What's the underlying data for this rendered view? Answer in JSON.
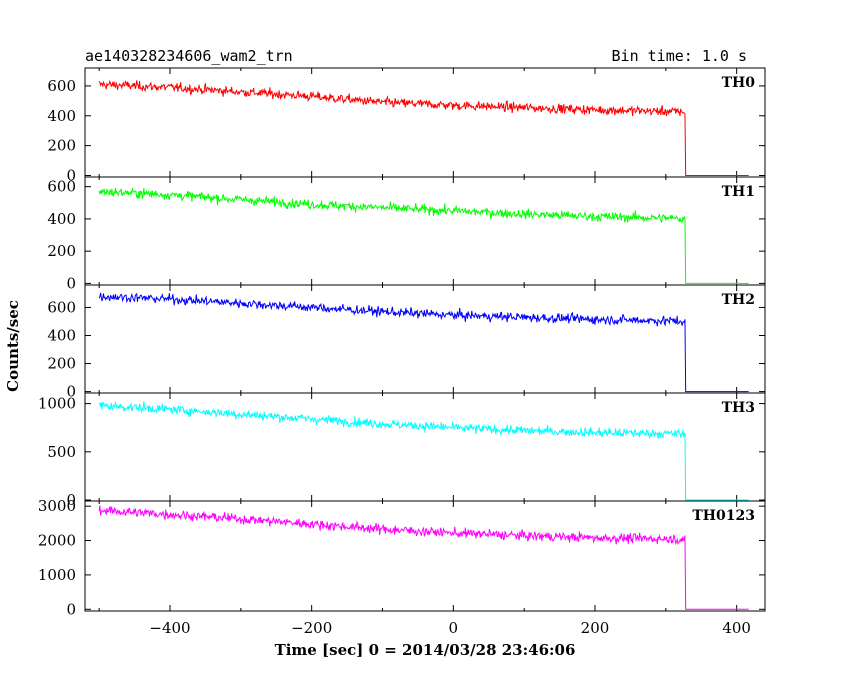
{
  "header": {
    "left_title": "ae140328234606_wam2_trn",
    "right_title": "Bin time: 1.0 s"
  },
  "chart_data": {
    "type": "line",
    "title": "ae140328234606_wam2_trn",
    "subtitle": "Bin time: 1.0 s",
    "xlabel": "Time [sec] 0 = 2014/03/28 23:46:06",
    "ylabel": "Counts/sec",
    "xlim": [
      -520,
      440
    ],
    "x_ticks": [
      -400,
      -200,
      0,
      200,
      400
    ],
    "drop_time": 327,
    "data_end": 417,
    "panels": [
      {
        "name": "TH0",
        "color": "#ff0000",
        "ylim": [
          -10,
          720
        ],
        "y_ticks": [
          0,
          200,
          400,
          600
        ],
        "x": [
          -500,
          -400,
          -300,
          -200,
          -100,
          0,
          100,
          200,
          300,
          327,
          328,
          417
        ],
        "values": [
          610,
          590,
          560,
          530,
          490,
          470,
          455,
          440,
          430,
          425,
          0,
          0
        ]
      },
      {
        "name": "TH1",
        "color": "#00ff00",
        "ylim": [
          -10,
          660
        ],
        "y_ticks": [
          0,
          200,
          400,
          600
        ],
        "x": [
          -500,
          -400,
          -300,
          -200,
          -100,
          0,
          100,
          200,
          300,
          327,
          328,
          417
        ],
        "values": [
          570,
          550,
          520,
          490,
          470,
          450,
          430,
          415,
          405,
          400,
          0,
          0
        ]
      },
      {
        "name": "TH2",
        "color": "#0000ff",
        "ylim": [
          -10,
          760
        ],
        "y_ticks": [
          0,
          200,
          400,
          600
        ],
        "x": [
          -500,
          -400,
          -300,
          -200,
          -100,
          0,
          100,
          200,
          300,
          327,
          328,
          417
        ],
        "values": [
          680,
          660,
          630,
          600,
          570,
          545,
          530,
          515,
          505,
          500,
          0,
          0
        ]
      },
      {
        "name": "TH3",
        "color": "#00ffff",
        "ylim": [
          -10,
          1110
        ],
        "y_ticks": [
          0,
          500,
          1000
        ],
        "x": [
          -500,
          -400,
          -300,
          -200,
          -100,
          0,
          100,
          200,
          300,
          327,
          328,
          417
        ],
        "values": [
          980,
          940,
          890,
          840,
          790,
          750,
          720,
          700,
          690,
          685,
          0,
          0
        ]
      },
      {
        "name": "TH0123",
        "color": "#ff00ff",
        "ylim": [
          -50,
          3150
        ],
        "y_ticks": [
          0,
          1000,
          2000,
          3000
        ],
        "x": [
          -500,
          -400,
          -300,
          -200,
          -100,
          0,
          100,
          200,
          300,
          327,
          328,
          417
        ],
        "values": [
          2880,
          2760,
          2630,
          2480,
          2330,
          2220,
          2140,
          2080,
          2050,
          2040,
          0,
          0
        ]
      }
    ]
  }
}
